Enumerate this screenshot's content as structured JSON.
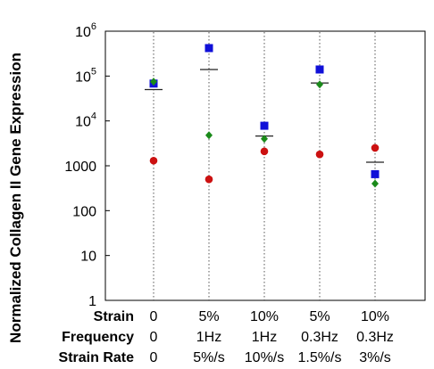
{
  "chart_data": {
    "type": "scatter",
    "ylabel": "Normalized Collagen II Gene Expression",
    "y_scale": "log",
    "ylim": [
      1,
      1000000
    ],
    "y_ticks": [
      {
        "value": 1000000,
        "label": "10",
        "sup": "6"
      },
      {
        "value": 100000,
        "label": "10",
        "sup": "5"
      },
      {
        "value": 10000,
        "label": "10",
        "sup": "4"
      },
      {
        "value": 1000,
        "label": "1000",
        "sup": ""
      },
      {
        "value": 100,
        "label": "100",
        "sup": ""
      },
      {
        "value": 10,
        "label": "10",
        "sup": ""
      },
      {
        "value": 1,
        "label": "1",
        "sup": ""
      }
    ],
    "grid": "vertical dotted lines at each condition",
    "row_labels": [
      "Strain",
      "Frequency",
      "Strain Rate"
    ],
    "conditions": [
      {
        "strain": "0",
        "frequency": "0",
        "rate": "0"
      },
      {
        "strain": "5%",
        "frequency": "1Hz",
        "rate": "5%/s"
      },
      {
        "strain": "10%",
        "frequency": "1Hz",
        "rate": "10%/s"
      },
      {
        "strain": "5%",
        "frequency": "0.3Hz",
        "rate": "1.5%/s"
      },
      {
        "strain": "10%",
        "frequency": "0.3Hz",
        "rate": "3%/s"
      }
    ],
    "series": [
      {
        "marker": "square",
        "color": "#1010d8",
        "values": [
          68000,
          420000,
          7800,
          140000,
          650
        ]
      },
      {
        "marker": "diamond",
        "color": "#1a8a1a",
        "values": [
          75000,
          4800,
          4000,
          65000,
          400
        ]
      },
      {
        "marker": "circle",
        "color": "#cc1111",
        "values": [
          1300,
          500,
          2100,
          1800,
          2500
        ]
      }
    ],
    "means": [
      50000,
      140000,
      4600,
      70000,
      1200
    ]
  }
}
